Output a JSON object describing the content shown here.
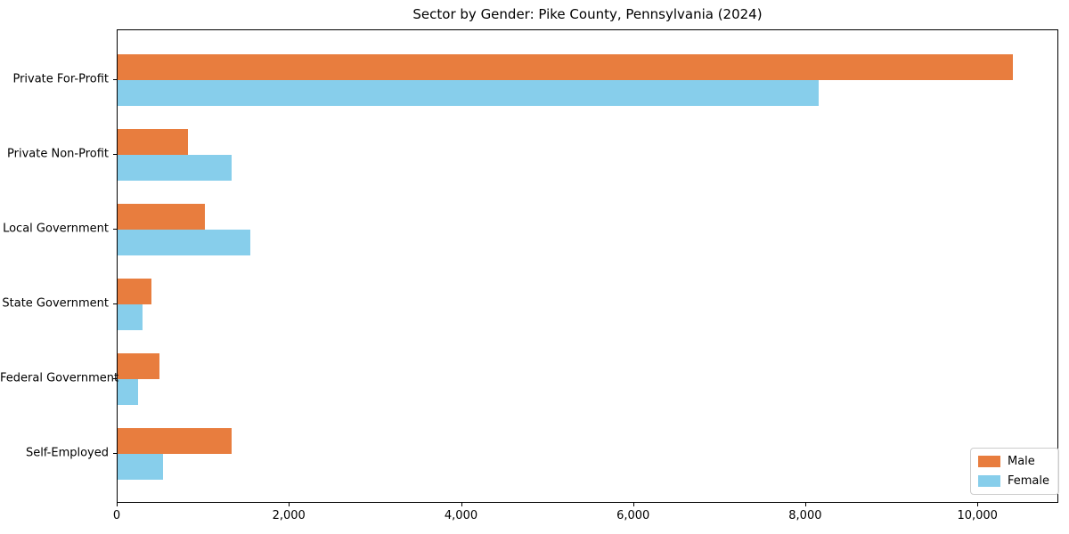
{
  "chart_data": {
    "type": "bar",
    "orientation": "horizontal",
    "title": "Sector by Gender: Pike County, Pennsylvania (2024)",
    "categories": [
      "Private For-Profit",
      "Private Non-Profit",
      "Local Government",
      "State Government",
      "Federal Government",
      "Self-Employed"
    ],
    "series": [
      {
        "name": "Male",
        "color": "#E87D3E",
        "values": [
          10400,
          820,
          1010,
          390,
          490,
          1320
        ]
      },
      {
        "name": "Female",
        "color": "#87CEEB",
        "values": [
          8150,
          1320,
          1540,
          290,
          240,
          530
        ]
      }
    ],
    "xlabel": "",
    "ylabel": "",
    "xlim": [
      0,
      10940
    ],
    "xticks": [
      0,
      2000,
      4000,
      6000,
      8000,
      10000
    ],
    "xtick_labels": [
      "0",
      "2,000",
      "4,000",
      "6,000",
      "8,000",
      "10,000"
    ],
    "grid": false,
    "legend": {
      "position": "lower right",
      "entries": [
        "Male",
        "Female"
      ]
    },
    "colors": {
      "male": "#E87D3E",
      "female": "#87CEEB",
      "spine": "#000000",
      "background": "#FFFFFF"
    }
  }
}
